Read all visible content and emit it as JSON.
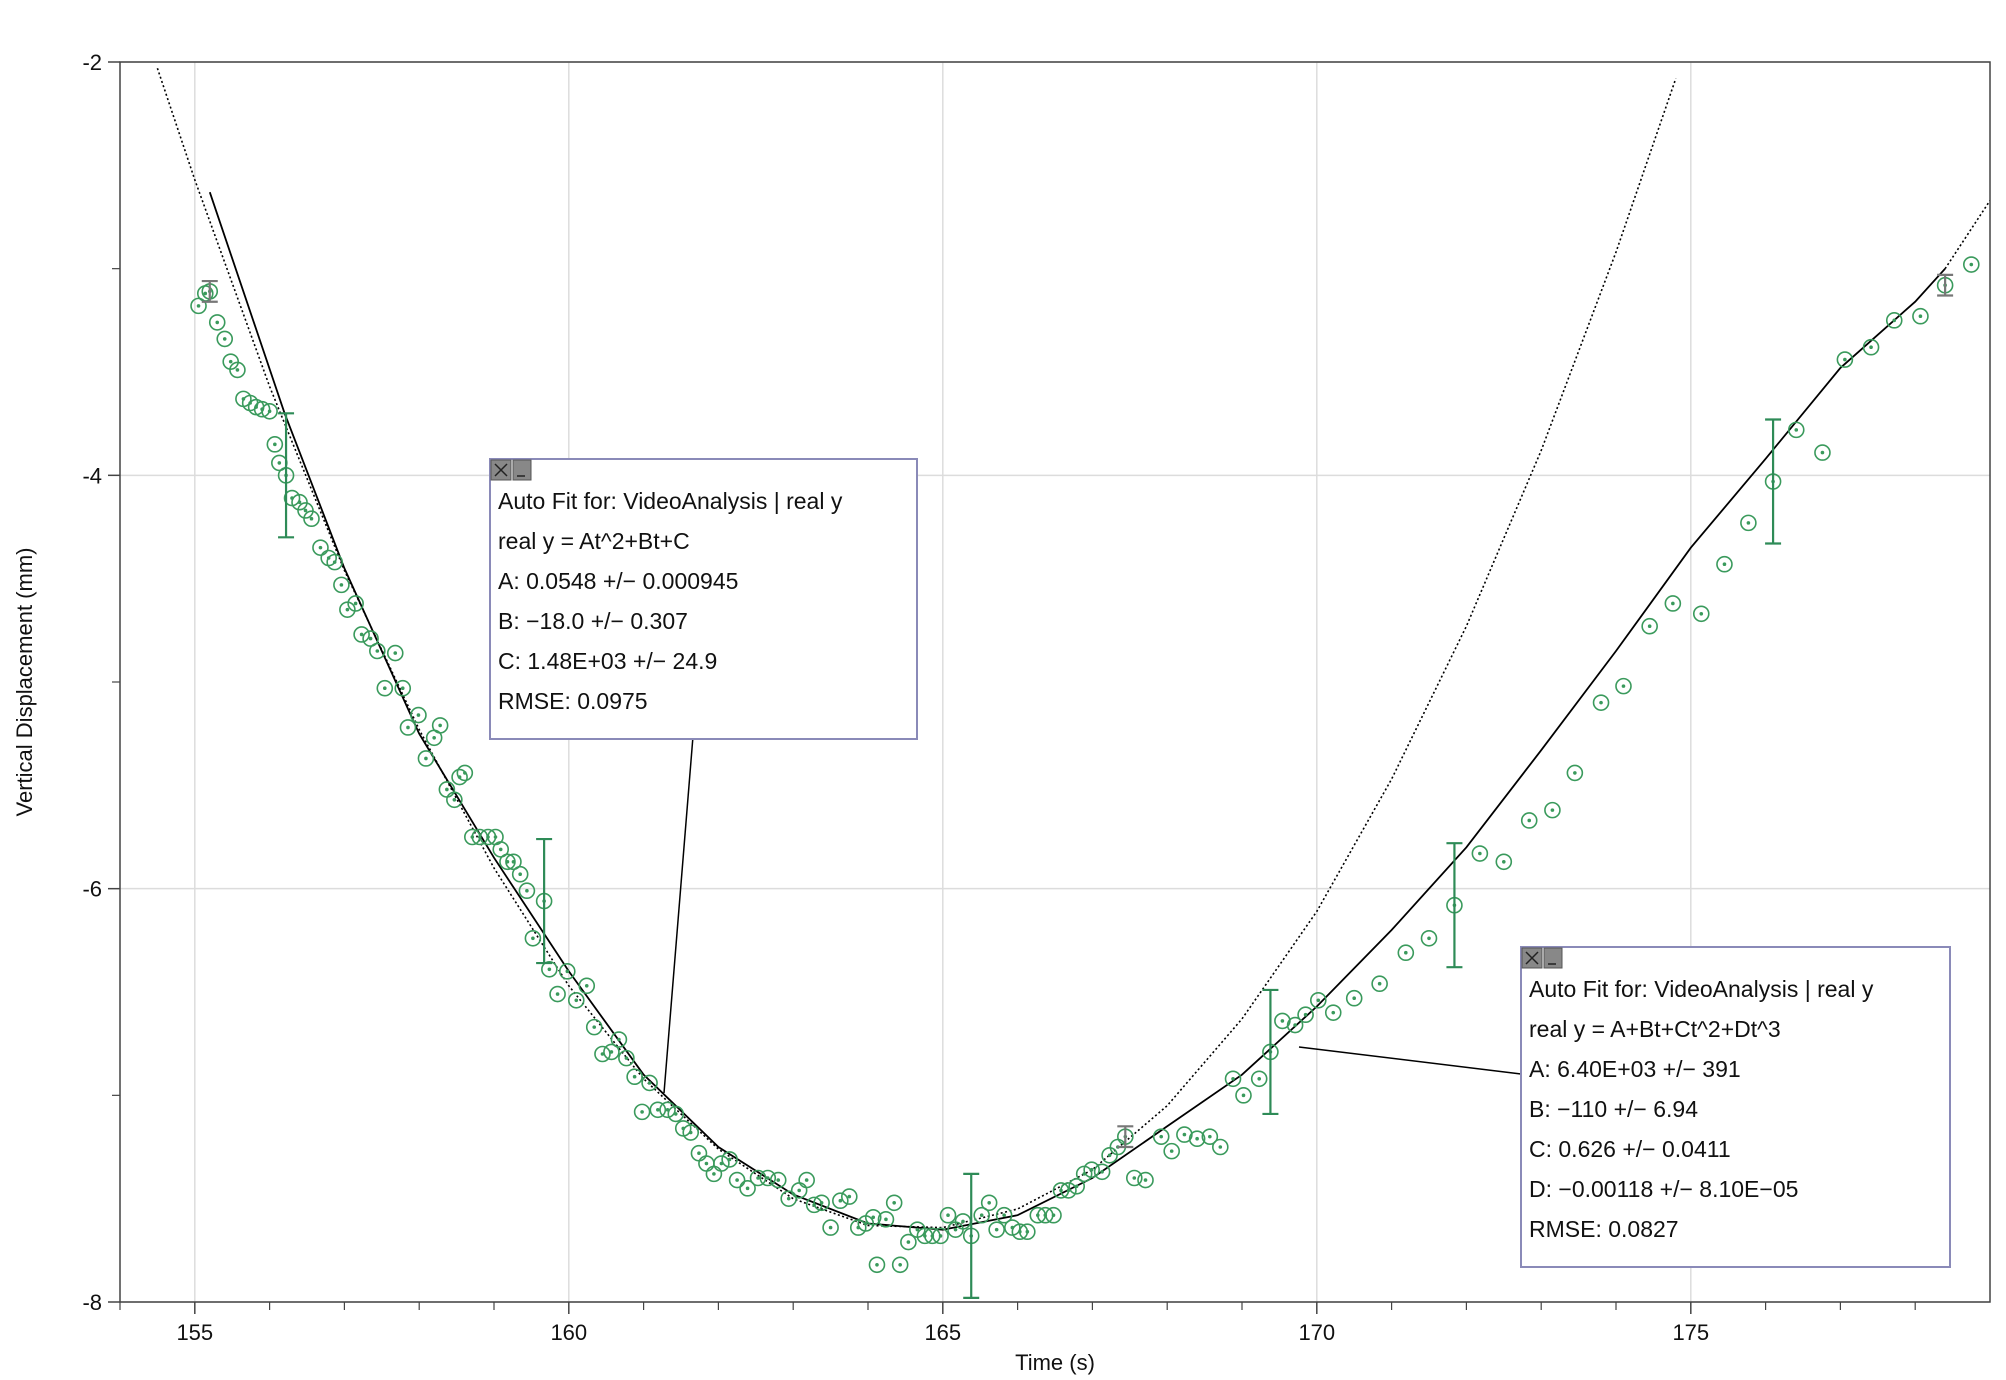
{
  "chart_data": {
    "type": "scatter",
    "x_label": "Time (s)",
    "y_label": "Vertical Displacement (mm)",
    "xlim": [
      154,
      179
    ],
    "ylim": [
      -8,
      -2
    ],
    "xticks": [
      155,
      160,
      165,
      170,
      175
    ],
    "yticks": [
      -8,
      -6,
      -4,
      -2
    ],
    "xminorticks": [
      154,
      156,
      157,
      158,
      159,
      161,
      162,
      163,
      164,
      166,
      167,
      168,
      169,
      171,
      172,
      173,
      174,
      176,
      177,
      178
    ],
    "yminorticks": [
      -7,
      -5,
      -3
    ],
    "grid": true,
    "series": [
      {
        "color": "#3a9a5c",
        "x": [
          155.05,
          155.14,
          155.2,
          155.3,
          155.4,
          155.48,
          155.57,
          155.65,
          155.74,
          155.82,
          155.9,
          156.0,
          156.07,
          156.13,
          156.22,
          156.3,
          156.4,
          156.48,
          156.56,
          156.68,
          156.79,
          156.87,
          156.96,
          157.04,
          157.15,
          157.23,
          157.35,
          157.44,
          157.54,
          157.68,
          157.78,
          157.85,
          157.99,
          158.09,
          158.2,
          158.28,
          158.37,
          158.47,
          158.54,
          158.61,
          158.71,
          158.81,
          158.92,
          159.02,
          159.09,
          159.18,
          159.26,
          159.35,
          159.44,
          159.52,
          159.67,
          159.74,
          159.85,
          159.98,
          160.1,
          160.24,
          160.34,
          160.45,
          160.57,
          160.67,
          160.77,
          160.88,
          160.98,
          161.08,
          161.19,
          161.32,
          161.43,
          161.53,
          161.63,
          161.74,
          161.84,
          161.94,
          162.04,
          162.15,
          162.25,
          162.39,
          162.53,
          162.66,
          162.8,
          162.94,
          163.08,
          163.18,
          163.28,
          163.38,
          163.5,
          163.63,
          163.75,
          163.87,
          163.97,
          164.07,
          164.12,
          164.24,
          164.35,
          164.43,
          164.54,
          164.66,
          164.76,
          164.86,
          164.97,
          165.07,
          165.17,
          165.27,
          165.38,
          165.52,
          165.62,
          165.72,
          165.82,
          165.93,
          166.03,
          166.13,
          166.27,
          166.37,
          166.48,
          166.58,
          166.68,
          166.79,
          166.89,
          166.99,
          167.13,
          167.23,
          167.34,
          167.44,
          167.56,
          167.71,
          167.92,
          168.06,
          168.23,
          168.4,
          168.57,
          168.71,
          168.88,
          169.02,
          169.23,
          169.38,
          169.54,
          169.71,
          169.85,
          170.02,
          170.22,
          170.5,
          170.84,
          171.19,
          171.5,
          171.84,
          172.18,
          172.5,
          172.84,
          173.15,
          173.45,
          173.8,
          174.1,
          174.45,
          174.76,
          175.14,
          175.45,
          175.77,
          176.1,
          176.41,
          176.76,
          177.06,
          177.41,
          177.72,
          178.07,
          178.4,
          178.75
        ],
        "values": [
          -3.18,
          -3.12,
          -3.11,
          -3.26,
          -3.34,
          -3.45,
          -3.49,
          -3.63,
          -3.65,
          -3.67,
          -3.68,
          -3.69,
          -3.85,
          -3.94,
          -4.0,
          -4.11,
          -4.13,
          -4.17,
          -4.21,
          -4.35,
          -4.4,
          -4.42,
          -4.53,
          -4.65,
          -4.62,
          -4.77,
          -4.79,
          -4.85,
          -5.03,
          -4.86,
          -5.03,
          -5.22,
          -5.16,
          -5.37,
          -5.27,
          -5.21,
          -5.52,
          -5.57,
          -5.46,
          -5.44,
          -5.75,
          -5.75,
          -5.75,
          -5.75,
          -5.81,
          -5.87,
          -5.87,
          -5.93,
          -6.01,
          -6.24,
          -6.06,
          -6.39,
          -6.51,
          -6.4,
          -6.54,
          -6.47,
          -6.67,
          -6.8,
          -6.79,
          -6.73,
          -6.82,
          -6.91,
          -7.08,
          -6.94,
          -7.07,
          -7.07,
          -7.09,
          -7.16,
          -7.18,
          -7.28,
          -7.33,
          -7.38,
          -7.33,
          -7.31,
          -7.41,
          -7.45,
          -7.4,
          -7.4,
          -7.41,
          -7.5,
          -7.46,
          -7.41,
          -7.53,
          -7.52,
          -7.64,
          -7.51,
          -7.49,
          -7.64,
          -7.62,
          -7.59,
          -7.82,
          -7.6,
          -7.52,
          -7.82,
          -7.71,
          -7.65,
          -7.68,
          -7.68,
          -7.68,
          -7.58,
          -7.65,
          -7.61,
          -7.68,
          -7.58,
          -7.52,
          -7.65,
          -7.58,
          -7.64,
          -7.66,
          -7.66,
          -7.58,
          -7.58,
          -7.58,
          -7.46,
          -7.46,
          -7.44,
          -7.38,
          -7.36,
          -7.37,
          -7.29,
          -7.25,
          -7.2,
          -7.4,
          -7.41,
          -7.2,
          -7.27,
          -7.19,
          -7.21,
          -7.2,
          -7.25,
          -6.92,
          -7.0,
          -6.92,
          -6.79,
          -6.64,
          -6.66,
          -6.61,
          -6.54,
          -6.6,
          -6.53,
          -6.46,
          -6.31,
          -6.24,
          -6.08,
          -5.83,
          -5.87,
          -5.67,
          -5.62,
          -5.44,
          -5.1,
          -5.02,
          -4.73,
          -4.62,
          -4.67,
          -4.43,
          -4.23,
          -4.03,
          -3.78,
          -3.89,
          -3.44,
          -3.38,
          -3.25,
          -3.23,
          -3.08,
          -2.98
        ]
      }
    ],
    "error_bars": [
      {
        "x": 155.2,
        "y": -3.11,
        "error": 0.05,
        "color": "#777777"
      },
      {
        "x": 156.22,
        "y": -4.0,
        "error": 0.3,
        "color": "#2e8b57"
      },
      {
        "x": 159.67,
        "y": -6.06,
        "error": 0.3,
        "color": "#2e8b57"
      },
      {
        "x": 165.38,
        "y": -7.68,
        "error": 0.3,
        "color": "#2e8b57"
      },
      {
        "x": 167.44,
        "y": -7.2,
        "error": 0.05,
        "color": "#777777"
      },
      {
        "x": 169.38,
        "y": -6.79,
        "error": 0.3,
        "color": "#2e8b57"
      },
      {
        "x": 171.84,
        "y": -6.08,
        "error": 0.3,
        "color": "#2e8b57"
      },
      {
        "x": 176.1,
        "y": -4.03,
        "error": 0.3,
        "color": "#2e8b57"
      },
      {
        "x": 178.4,
        "y": -3.08,
        "error": 0.05,
        "color": "#777777"
      }
    ],
    "fits": [
      {
        "style": "dotted",
        "x": [
          154.5,
          155,
          156,
          157,
          158,
          159,
          160,
          161,
          162,
          163,
          164,
          165,
          166,
          167,
          168,
          169,
          170,
          171,
          172,
          173,
          174,
          174.8
        ],
        "values": [
          -2.03,
          -2.57,
          -3.57,
          -4.46,
          -5.23,
          -5.9,
          -6.47,
          -6.92,
          -7.26,
          -7.5,
          -7.63,
          -7.64,
          -7.55,
          -7.36,
          -7.05,
          -6.63,
          -6.11,
          -5.47,
          -4.73,
          -3.88,
          -2.92,
          -2.08
        ]
      },
      {
        "style": "solid",
        "x": [
          155.2,
          156.2,
          157,
          158,
          159,
          160,
          161,
          162,
          163,
          164,
          165,
          166,
          167,
          168,
          169,
          170,
          171,
          172,
          173,
          174,
          175,
          176,
          177,
          178,
          178.4
        ],
        "values": [
          -2.63,
          -3.7,
          -4.45,
          -5.25,
          -5.85,
          -6.4,
          -6.9,
          -7.25,
          -7.48,
          -7.62,
          -7.65,
          -7.58,
          -7.4,
          -7.15,
          -6.9,
          -6.57,
          -6.2,
          -5.8,
          -5.33,
          -4.85,
          -4.35,
          -3.92,
          -3.48,
          -3.16,
          -3.0
        ]
      },
      {
        "style": "dotted",
        "x": [
          178.4,
          179
        ],
        "values": [
          -3.0,
          -2.67
        ]
      }
    ],
    "annotations": [
      {
        "lines": [
          "Auto Fit for: VideoAnalysis | real y",
          "real y = At^2+Bt+C",
          "A: 0.0548 +/− 0.000945",
          "B: −18.0 +/− 0.307",
          "C: 1.48E+03 +/− 24.9",
          "RMSE: 0.0975"
        ]
      },
      {
        "lines": [
          "Auto Fit for: VideoAnalysis | real y",
          "real y = A+Bt+Ct^2+Dt^3",
          "A: 6.40E+03 +/− 391",
          "B: −110 +/− 6.94",
          "C: 0.626 +/− 0.0411",
          "D: −0.00118 +/− 8.10E−05",
          "RMSE: 0.0827"
        ]
      }
    ]
  }
}
